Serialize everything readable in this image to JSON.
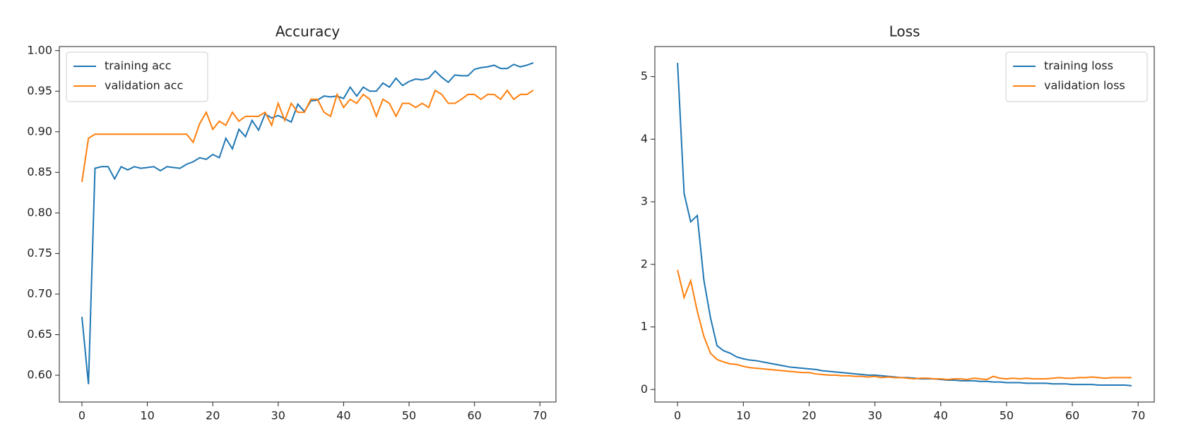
{
  "chart_data": [
    {
      "type": "line",
      "title": "Accuracy",
      "x": [
        0,
        1,
        2,
        3,
        4,
        5,
        6,
        7,
        8,
        9,
        10,
        11,
        12,
        13,
        14,
        15,
        16,
        17,
        18,
        19,
        20,
        21,
        22,
        23,
        24,
        25,
        26,
        27,
        28,
        29,
        30,
        31,
        32,
        33,
        34,
        35,
        36,
        37,
        38,
        39,
        40,
        41,
        42,
        43,
        44,
        45,
        46,
        47,
        48,
        49,
        50,
        51,
        52,
        53,
        54,
        55,
        56,
        57,
        58,
        59,
        60,
        61,
        62,
        63,
        64,
        65,
        66,
        67,
        68,
        69
      ],
      "series": [
        {
          "name": "training acc",
          "color": "#1f77b4",
          "values": [
            0.672,
            0.589,
            0.855,
            0.857,
            0.857,
            0.842,
            0.857,
            0.853,
            0.857,
            0.855,
            0.856,
            0.857,
            0.852,
            0.857,
            0.856,
            0.855,
            0.86,
            0.863,
            0.868,
            0.866,
            0.872,
            0.868,
            0.892,
            0.879,
            0.903,
            0.894,
            0.914,
            0.902,
            0.922,
            0.917,
            0.92,
            0.916,
            0.912,
            0.934,
            0.925,
            0.938,
            0.939,
            0.944,
            0.943,
            0.944,
            0.941,
            0.955,
            0.944,
            0.955,
            0.95,
            0.95,
            0.96,
            0.955,
            0.966,
            0.957,
            0.962,
            0.965,
            0.964,
            0.966,
            0.975,
            0.967,
            0.961,
            0.97,
            0.969,
            0.969,
            0.977,
            0.979,
            0.98,
            0.982,
            0.978,
            0.978,
            0.983,
            0.98,
            0.982,
            0.985
          ]
        },
        {
          "name": "validation acc",
          "color": "#ff7f0e",
          "values": [
            0.838,
            0.892,
            0.897,
            0.897,
            0.897,
            0.897,
            0.897,
            0.897,
            0.897,
            0.897,
            0.897,
            0.897,
            0.897,
            0.897,
            0.897,
            0.897,
            0.897,
            0.887,
            0.91,
            0.924,
            0.903,
            0.913,
            0.908,
            0.924,
            0.913,
            0.919,
            0.919,
            0.919,
            0.924,
            0.908,
            0.935,
            0.914,
            0.935,
            0.924,
            0.924,
            0.94,
            0.94,
            0.924,
            0.919,
            0.946,
            0.93,
            0.94,
            0.935,
            0.946,
            0.94,
            0.919,
            0.94,
            0.935,
            0.919,
            0.935,
            0.935,
            0.93,
            0.935,
            0.93,
            0.951,
            0.946,
            0.935,
            0.935,
            0.94,
            0.946,
            0.946,
            0.94,
            0.946,
            0.946,
            0.94,
            0.951,
            0.94,
            0.946,
            0.946,
            0.951
          ]
        }
      ],
      "xlim": [
        -3.45,
        72.45
      ],
      "xticks": [
        0,
        10,
        20,
        30,
        40,
        50,
        60,
        70
      ],
      "ylim": [
        0.567,
        1.005
      ],
      "yticks": [
        {
          "value": 0.6,
          "label": "0.60"
        },
        0.65,
        {
          "value": 0.7,
          "label": "0.70"
        },
        0.75,
        {
          "value": 0.8,
          "label": "0.80"
        },
        0.85,
        {
          "value": 0.9,
          "label": "0.90"
        },
        0.95,
        {
          "value": 1.0,
          "label": "1.00"
        }
      ],
      "legend": "upper left"
    },
    {
      "type": "line",
      "title": "Loss",
      "x": [
        0,
        1,
        2,
        3,
        4,
        5,
        6,
        7,
        8,
        9,
        10,
        11,
        12,
        13,
        14,
        15,
        16,
        17,
        18,
        19,
        20,
        21,
        22,
        23,
        24,
        25,
        26,
        27,
        28,
        29,
        30,
        31,
        32,
        33,
        34,
        35,
        36,
        37,
        38,
        39,
        40,
        41,
        42,
        43,
        44,
        45,
        46,
        47,
        48,
        49,
        50,
        51,
        52,
        53,
        54,
        55,
        56,
        57,
        58,
        59,
        60,
        61,
        62,
        63,
        64,
        65,
        66,
        67,
        68,
        69
      ],
      "series": [
        {
          "name": "training loss",
          "color": "#1f77b4",
          "values": [
            5.22,
            3.13,
            2.68,
            2.78,
            1.75,
            1.15,
            0.7,
            0.62,
            0.58,
            0.52,
            0.49,
            0.47,
            0.46,
            0.44,
            0.42,
            0.4,
            0.38,
            0.36,
            0.35,
            0.34,
            0.33,
            0.32,
            0.3,
            0.29,
            0.28,
            0.27,
            0.26,
            0.25,
            0.24,
            0.23,
            0.23,
            0.22,
            0.21,
            0.2,
            0.19,
            0.19,
            0.18,
            0.17,
            0.17,
            0.17,
            0.16,
            0.15,
            0.15,
            0.14,
            0.14,
            0.14,
            0.13,
            0.13,
            0.12,
            0.12,
            0.11,
            0.11,
            0.11,
            0.1,
            0.1,
            0.1,
            0.1,
            0.09,
            0.09,
            0.09,
            0.08,
            0.08,
            0.08,
            0.08,
            0.07,
            0.07,
            0.07,
            0.07,
            0.07,
            0.06
          ]
        },
        {
          "name": "validation loss",
          "color": "#ff7f0e",
          "values": [
            1.91,
            1.47,
            1.74,
            1.25,
            0.85,
            0.58,
            0.48,
            0.44,
            0.41,
            0.4,
            0.37,
            0.35,
            0.34,
            0.33,
            0.32,
            0.31,
            0.3,
            0.29,
            0.28,
            0.27,
            0.27,
            0.25,
            0.24,
            0.23,
            0.23,
            0.22,
            0.22,
            0.21,
            0.21,
            0.2,
            0.21,
            0.19,
            0.2,
            0.19,
            0.19,
            0.18,
            0.17,
            0.18,
            0.18,
            0.17,
            0.17,
            0.16,
            0.17,
            0.17,
            0.16,
            0.18,
            0.17,
            0.16,
            0.21,
            0.18,
            0.17,
            0.18,
            0.17,
            0.18,
            0.17,
            0.17,
            0.17,
            0.18,
            0.19,
            0.18,
            0.18,
            0.19,
            0.19,
            0.2,
            0.19,
            0.18,
            0.19,
            0.19,
            0.19,
            0.19
          ]
        }
      ],
      "xlim": [
        -3.45,
        72.45
      ],
      "xticks": [
        0,
        10,
        20,
        30,
        40,
        50,
        60,
        70
      ],
      "ylim": [
        -0.2,
        5.48
      ],
      "yticks": [
        0,
        1,
        2,
        3,
        4,
        5
      ],
      "legend": "upper right"
    }
  ]
}
